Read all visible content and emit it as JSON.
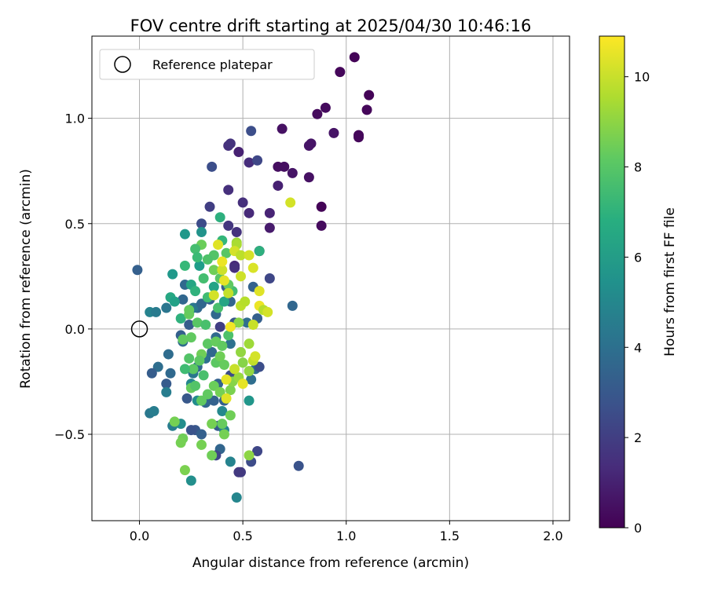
{
  "chart_data": {
    "type": "scatter",
    "title": "FOV centre drift starting at 2025/04/30 10:46:16",
    "xlabel": "Angular distance from reference (arcmin)",
    "ylabel": "Rotation from reference (arcmin)",
    "xlim": [
      -0.23,
      2.08
    ],
    "ylim": [
      -0.91,
      1.39
    ],
    "xticks": [
      0.0,
      0.5,
      1.0,
      1.5,
      2.0
    ],
    "xtick_labels": [
      "0.0",
      "0.5",
      "1.0",
      "1.5",
      "2.0"
    ],
    "yticks": [
      -0.5,
      0.0,
      0.5,
      1.0
    ],
    "ytick_labels": [
      "−0.5",
      "0.0",
      "0.5",
      "1.0"
    ],
    "grid": true,
    "legend": {
      "position": "top-left",
      "entries": [
        "Reference platepar"
      ]
    },
    "reference_point": {
      "x": 0.0,
      "y": 0.0
    },
    "colorbar": {
      "label": "Hours from first FF file",
      "range": [
        0,
        10.9
      ],
      "ticks": [
        0,
        2,
        4,
        6,
        8,
        10
      ],
      "tick_labels": [
        "0",
        "2",
        "4",
        "6",
        "8",
        "10"
      ],
      "colormap": "viridis"
    },
    "series": [
      {
        "points": [
          [
            1.04,
            1.29,
            0.1
          ],
          [
            1.11,
            1.11,
            0.1
          ],
          [
            0.97,
            1.22,
            0.2
          ],
          [
            1.1,
            1.04,
            0.2
          ],
          [
            1.06,
            0.92,
            0.2
          ],
          [
            1.06,
            0.91,
            0.2
          ],
          [
            0.9,
            1.05,
            0.3
          ],
          [
            0.86,
            1.02,
            0.3
          ],
          [
            0.69,
            0.95,
            0.5
          ],
          [
            0.94,
            0.93,
            0.6
          ],
          [
            0.83,
            0.88,
            0.6
          ],
          [
            0.82,
            0.87,
            0.6
          ],
          [
            0.88,
            0.58,
            0.1
          ],
          [
            0.88,
            0.49,
            0.3
          ],
          [
            0.67,
            0.77,
            0.4
          ],
          [
            0.7,
            0.77,
            0.4
          ],
          [
            0.74,
            0.74,
            0.6
          ],
          [
            0.82,
            0.72,
            0.5
          ],
          [
            0.67,
            0.68,
            1.0
          ],
          [
            0.58,
            0.37,
            0.3
          ],
          [
            0.63,
            0.48,
            0.8
          ],
          [
            0.63,
            0.55,
            1.1
          ],
          [
            0.53,
            0.55,
            1.3
          ],
          [
            0.5,
            0.6,
            1.5
          ],
          [
            0.48,
            0.84,
            1.0
          ],
          [
            0.43,
            0.87,
            1.5
          ],
          [
            0.44,
            0.88,
            1.6
          ],
          [
            0.53,
            0.79,
            1.4
          ],
          [
            0.57,
            0.8,
            2.3
          ],
          [
            0.54,
            0.94,
            2.6
          ],
          [
            0.43,
            0.66,
            1.5
          ],
          [
            0.35,
            0.77,
            2.6
          ],
          [
            0.34,
            0.58,
            2.0
          ],
          [
            0.47,
            0.46,
            1.6
          ],
          [
            0.43,
            0.49,
            1.7
          ],
          [
            0.3,
            0.5,
            2.5
          ],
          [
            0.46,
            0.3,
            1.3
          ],
          [
            0.46,
            0.29,
            1.5
          ],
          [
            0.63,
            0.24,
            2.3
          ],
          [
            0.74,
            0.11,
            3.6
          ],
          [
            0.55,
            0.2,
            3.4
          ],
          [
            0.57,
            0.05,
            3.3
          ],
          [
            0.39,
            0.01,
            2.0
          ],
          [
            0.46,
            0.03,
            3.0
          ],
          [
            0.52,
            0.03,
            3.9
          ],
          [
            -0.01,
            0.28,
            3.3
          ],
          [
            0.05,
            0.08,
            4.9
          ],
          [
            0.08,
            0.08,
            4.5
          ],
          [
            0.13,
            0.1,
            4.3
          ],
          [
            0.21,
            0.14,
            3.6
          ],
          [
            0.22,
            0.21,
            3.7
          ],
          [
            0.34,
            0.14,
            3.4
          ],
          [
            0.42,
            0.2,
            3.1
          ],
          [
            0.44,
            0.13,
            3.5
          ],
          [
            0.37,
            0.07,
            3.7
          ],
          [
            0.28,
            0.1,
            3.6
          ],
          [
            0.26,
            0.1,
            4.3
          ],
          [
            0.3,
            0.12,
            3.6
          ],
          [
            0.24,
            0.02,
            3.2
          ],
          [
            0.21,
            -0.06,
            3.8
          ],
          [
            0.2,
            -0.03,
            3.3
          ],
          [
            0.37,
            -0.04,
            3.7
          ],
          [
            0.44,
            -0.07,
            4.1
          ],
          [
            0.35,
            -0.11,
            3.6
          ],
          [
            0.32,
            -0.14,
            4.0
          ],
          [
            0.14,
            -0.12,
            3.8
          ],
          [
            0.28,
            -0.18,
            3.7
          ],
          [
            0.09,
            -0.18,
            3.9
          ],
          [
            0.06,
            -0.21,
            3.2
          ],
          [
            0.15,
            -0.21,
            3.7
          ],
          [
            0.13,
            -0.26,
            3.1
          ],
          [
            0.26,
            -0.21,
            4.3
          ],
          [
            0.44,
            -0.22,
            2.5
          ],
          [
            0.56,
            -0.19,
            3.8
          ],
          [
            0.58,
            -0.18,
            2.6
          ],
          [
            0.54,
            -0.24,
            3.9
          ],
          [
            0.13,
            -0.3,
            4.6
          ],
          [
            0.25,
            -0.26,
            5.0
          ],
          [
            0.38,
            -0.26,
            3.4
          ],
          [
            0.41,
            -0.34,
            3.3
          ],
          [
            0.23,
            -0.33,
            3.0
          ],
          [
            0.32,
            -0.35,
            3.6
          ],
          [
            0.36,
            -0.34,
            3.4
          ],
          [
            0.4,
            -0.39,
            5.1
          ],
          [
            0.28,
            -0.34,
            5.3
          ],
          [
            0.53,
            -0.34,
            5.7
          ],
          [
            0.05,
            -0.4,
            4.4
          ],
          [
            0.07,
            -0.39,
            4.6
          ],
          [
            0.16,
            -0.46,
            4.6
          ],
          [
            0.27,
            -0.48,
            3.0
          ],
          [
            0.25,
            -0.48,
            2.8
          ],
          [
            0.3,
            -0.5,
            3.3
          ],
          [
            0.2,
            -0.45,
            5.3
          ],
          [
            0.38,
            -0.46,
            3.1
          ],
          [
            0.41,
            -0.48,
            4.9
          ],
          [
            0.39,
            -0.57,
            3.5
          ],
          [
            0.37,
            -0.6,
            2.3
          ],
          [
            0.57,
            -0.58,
            2.3
          ],
          [
            0.54,
            -0.63,
            2.5
          ],
          [
            0.49,
            -0.68,
            1.9
          ],
          [
            0.48,
            -0.68,
            1.8
          ],
          [
            0.77,
            -0.65,
            2.8
          ],
          [
            0.44,
            -0.63,
            4.9
          ],
          [
            0.25,
            -0.72,
            5.4
          ],
          [
            0.47,
            -0.8,
            5.0
          ],
          [
            0.16,
            0.26,
            5.8
          ],
          [
            0.22,
            0.45,
            5.8
          ],
          [
            0.3,
            0.46,
            5.6
          ],
          [
            0.39,
            0.53,
            6.9
          ],
          [
            0.29,
            0.3,
            6.0
          ],
          [
            0.22,
            0.3,
            7.3
          ],
          [
            0.15,
            0.15,
            6.5
          ],
          [
            0.17,
            0.13,
            6.2
          ],
          [
            0.2,
            0.05,
            7.0
          ],
          [
            0.25,
            0.21,
            6.4
          ],
          [
            0.27,
            0.18,
            7.0
          ],
          [
            0.33,
            0.15,
            7.5
          ],
          [
            0.36,
            0.2,
            6.3
          ],
          [
            0.38,
            0.1,
            7.7
          ],
          [
            0.41,
            0.13,
            6.4
          ],
          [
            0.45,
            0.18,
            7.6
          ],
          [
            0.58,
            0.37,
            6.9
          ],
          [
            0.36,
            0.35,
            7.9
          ],
          [
            0.33,
            0.33,
            7.8
          ],
          [
            0.31,
            0.24,
            7.6
          ],
          [
            0.4,
            0.42,
            7.2
          ],
          [
            0.42,
            0.36,
            8.0
          ],
          [
            0.3,
            0.4,
            8.4
          ],
          [
            0.27,
            0.38,
            7.6
          ],
          [
            0.28,
            0.34,
            7.4
          ],
          [
            0.36,
            0.28,
            8.5
          ],
          [
            0.39,
            0.24,
            8.0
          ],
          [
            0.43,
            0.21,
            8.2
          ],
          [
            0.24,
            0.07,
            8.3
          ],
          [
            0.24,
            0.09,
            8.3
          ],
          [
            0.28,
            0.03,
            8.0
          ],
          [
            0.32,
            0.02,
            7.7
          ],
          [
            0.25,
            -0.04,
            8.2
          ],
          [
            0.21,
            -0.05,
            8.2
          ],
          [
            0.33,
            -0.07,
            8.1
          ],
          [
            0.37,
            -0.06,
            8.3
          ],
          [
            0.4,
            -0.08,
            8.2
          ],
          [
            0.43,
            -0.03,
            7.8
          ],
          [
            0.3,
            -0.12,
            8.5
          ],
          [
            0.29,
            -0.15,
            8.1
          ],
          [
            0.24,
            -0.14,
            7.9
          ],
          [
            0.26,
            -0.19,
            8.1
          ],
          [
            0.22,
            -0.19,
            7.5
          ],
          [
            0.37,
            -0.16,
            8.1
          ],
          [
            0.39,
            -0.13,
            8.5
          ],
          [
            0.41,
            -0.17,
            8.3
          ],
          [
            0.31,
            -0.22,
            7.7
          ],
          [
            0.25,
            -0.28,
            8.3
          ],
          [
            0.27,
            -0.27,
            7.9
          ],
          [
            0.3,
            -0.34,
            8.2
          ],
          [
            0.33,
            -0.31,
            8.2
          ],
          [
            0.36,
            -0.27,
            8.4
          ],
          [
            0.39,
            -0.3,
            8.6
          ],
          [
            0.44,
            -0.41,
            8.5
          ],
          [
            0.4,
            -0.45,
            8.3
          ],
          [
            0.35,
            -0.45,
            8.6
          ],
          [
            0.41,
            -0.5,
            8.6
          ],
          [
            0.21,
            -0.52,
            8.5
          ],
          [
            0.2,
            -0.54,
            8.6
          ],
          [
            0.3,
            -0.55,
            8.6
          ],
          [
            0.35,
            -0.6,
            8.5
          ],
          [
            0.22,
            -0.67,
            8.7
          ],
          [
            0.17,
            -0.44,
            8.6
          ],
          [
            0.53,
            -0.6,
            9.0
          ],
          [
            0.44,
            -0.29,
            8.7
          ],
          [
            0.45,
            -0.25,
            8.9
          ],
          [
            0.48,
            -0.23,
            9.2
          ],
          [
            0.49,
            -0.11,
            9.1
          ],
          [
            0.5,
            -0.16,
            8.9
          ],
          [
            0.53,
            -0.2,
            9.1
          ],
          [
            0.48,
            0.03,
            8.9
          ],
          [
            0.53,
            -0.07,
            9.3
          ],
          [
            0.55,
            -0.15,
            9.9
          ],
          [
            0.49,
            0.11,
            9.8
          ],
          [
            0.51,
            0.13,
            9.7
          ],
          [
            0.47,
            0.41,
            9.3
          ],
          [
            0.47,
            0.4,
            9.5
          ],
          [
            0.46,
            0.37,
            10.2
          ],
          [
            0.49,
            0.35,
            9.8
          ],
          [
            0.49,
            0.25,
            10.1
          ],
          [
            0.53,
            0.35,
            10.2
          ],
          [
            0.55,
            0.29,
            10.3
          ],
          [
            0.58,
            0.18,
            10.4
          ],
          [
            0.58,
            0.11,
            10.6
          ],
          [
            0.6,
            0.09,
            9.7
          ],
          [
            0.62,
            0.08,
            10.2
          ],
          [
            0.55,
            0.02,
            10.0
          ],
          [
            0.73,
            0.6,
            10.2
          ],
          [
            0.43,
            0.17,
            9.9
          ],
          [
            0.4,
            0.28,
            10.1
          ],
          [
            0.41,
            0.23,
            10.5
          ],
          [
            0.38,
            0.4,
            10.4
          ],
          [
            0.4,
            0.32,
            10.6
          ],
          [
            0.46,
            -0.19,
            10.0
          ],
          [
            0.42,
            -0.24,
            10.5
          ],
          [
            0.42,
            -0.33,
            10.4
          ],
          [
            0.5,
            -0.26,
            10.5
          ],
          [
            0.56,
            -0.13,
            10.2
          ],
          [
            0.44,
            0.01,
            10.7
          ],
          [
            0.36,
            0.16,
            10.2
          ]
        ]
      }
    ]
  }
}
